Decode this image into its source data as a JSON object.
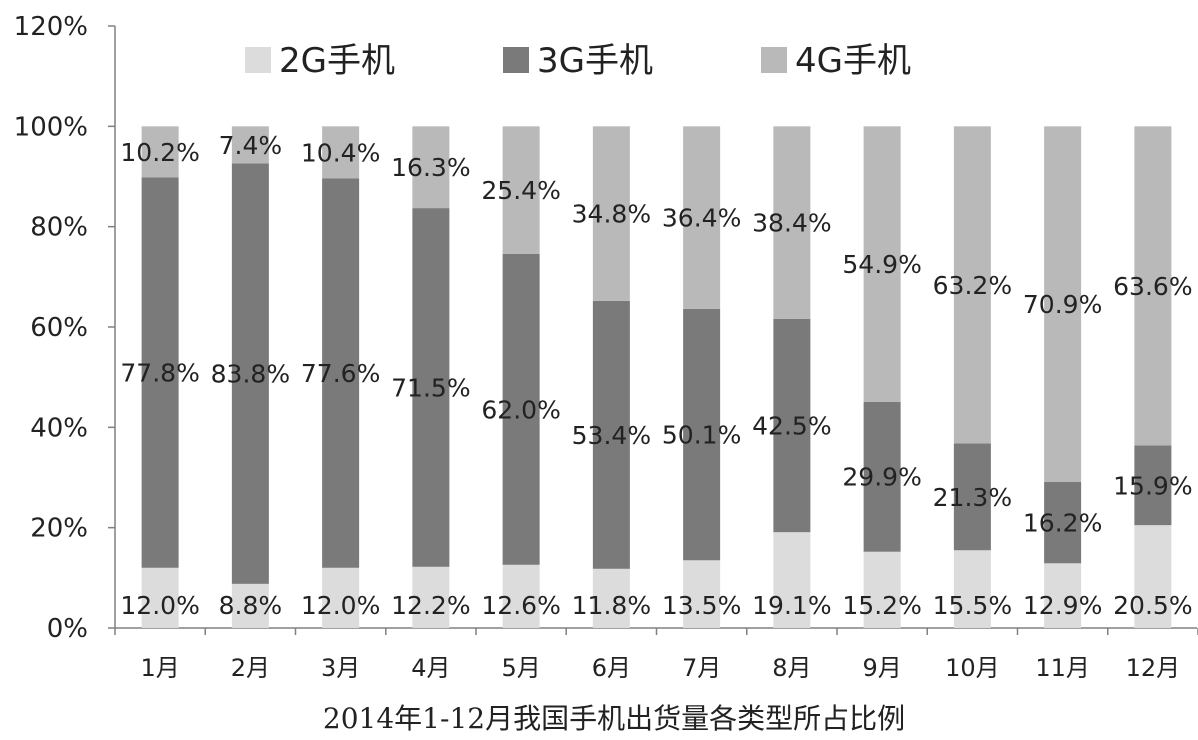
{
  "chart_data": {
    "type": "bar",
    "stacked": true,
    "title": "",
    "caption": "2014年1-12月我国手机出货量各类型所占比例",
    "xlabel": "",
    "ylabel": "",
    "ylim": [
      0,
      120
    ],
    "yticks": [
      "0%",
      "20%",
      "40%",
      "60%",
      "80%",
      "100%",
      "120%"
    ],
    "yticks_values": [
      0,
      20,
      40,
      60,
      80,
      100,
      120
    ],
    "grid": false,
    "legend_position": "top",
    "categories": [
      "1月",
      "2月",
      "3月",
      "4月",
      "5月",
      "6月",
      "7月",
      "8月",
      "9月",
      "10月",
      "11月",
      "12月"
    ],
    "series": [
      {
        "name": "2G手机",
        "color": "#dcdcdc",
        "values": [
          12.0,
          8.8,
          12.0,
          12.2,
          12.6,
          11.8,
          13.5,
          19.1,
          15.2,
          15.5,
          12.9,
          20.5
        ],
        "labels": [
          "12.0%",
          "8.8%",
          "12.0%",
          "12.2%",
          "12.6%",
          "11.8%",
          "13.5%",
          "19.1%",
          "15.2%",
          "15.5%",
          "12.9%",
          "20.5%"
        ]
      },
      {
        "name": "3G手机",
        "color": "#7a7a7a",
        "values": [
          77.8,
          83.8,
          77.6,
          71.5,
          62.0,
          53.4,
          50.1,
          42.5,
          29.9,
          21.3,
          16.2,
          15.9
        ],
        "labels": [
          "77.8%",
          "83.8%",
          "77.6%",
          "71.5%",
          "62.0%",
          "53.4%",
          "50.1%",
          "42.5%",
          "29.9%",
          "21.3%",
          "16.2%",
          "15.9%"
        ]
      },
      {
        "name": "4G手机",
        "color": "#b9b9b9",
        "values": [
          10.2,
          7.4,
          10.4,
          16.3,
          25.4,
          34.8,
          36.4,
          38.4,
          54.9,
          63.2,
          70.9,
          63.6
        ],
        "labels": [
          "10.2%",
          "7.4%",
          "10.4%",
          "16.3%",
          "25.4%",
          "34.8%",
          "36.4%",
          "38.4%",
          "54.9%",
          "63.2%",
          "70.9%",
          "63.6%"
        ]
      }
    ]
  }
}
